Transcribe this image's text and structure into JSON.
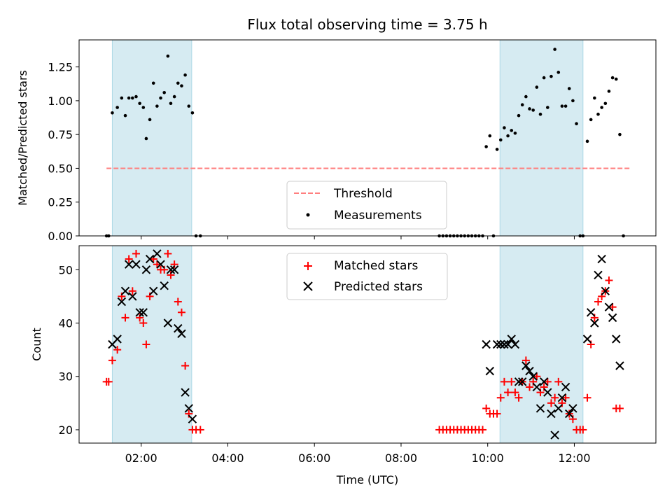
{
  "chart_data": [
    {
      "type": "scatter",
      "title": "Flux total observing time = 3.75 h",
      "xlabel": "",
      "ylabel": "Matched/Predicted stars",
      "xlim": [
        "00:34",
        "13:53"
      ],
      "ylim": [
        0,
        1.45
      ],
      "y_ticks": [
        0.0,
        0.25,
        0.5,
        0.75,
        1.0,
        1.25
      ],
      "y_tick_labels": [
        "0.00",
        "0.25",
        "0.50",
        "0.75",
        "1.00",
        "1.25"
      ],
      "x_ticks": [
        "02:00",
        "04:00",
        "06:00",
        "08:00",
        "10:00",
        "12:00"
      ],
      "x_tick_labels": [],
      "shaded_intervals": [
        [
          "01:20",
          "03:10"
        ],
        [
          "10:17",
          "12:12"
        ]
      ],
      "shade_color": "#add8e6",
      "legend_position": "lower-center",
      "threshold": {
        "name": "Threshold",
        "y": 0.5,
        "x_range": [
          "01:12",
          "13:18"
        ],
        "color": "#ff7f7f",
        "style": "dashed"
      },
      "series": [
        {
          "name": "Measurements",
          "color": "#000000",
          "points": [
            [
              "01:12",
              0.0
            ],
            [
              "01:15",
              0.0
            ],
            [
              "01:20",
              0.91
            ],
            [
              "01:27",
              0.95
            ],
            [
              "01:33",
              1.02
            ],
            [
              "01:38",
              0.89
            ],
            [
              "01:43",
              1.02
            ],
            [
              "01:48",
              1.02
            ],
            [
              "01:53",
              1.03
            ],
            [
              "01:58",
              0.98
            ],
            [
              "02:03",
              0.95
            ],
            [
              "02:07",
              0.72
            ],
            [
              "02:12",
              0.86
            ],
            [
              "02:17",
              1.13
            ],
            [
              "02:22",
              0.96
            ],
            [
              "02:27",
              1.02
            ],
            [
              "02:32",
              1.06
            ],
            [
              "02:37",
              1.33
            ],
            [
              "02:41",
              0.98
            ],
            [
              "02:46",
              1.03
            ],
            [
              "02:51",
              1.13
            ],
            [
              "02:56",
              1.11
            ],
            [
              "03:01",
              1.19
            ],
            [
              "03:06",
              0.96
            ],
            [
              "03:11",
              0.91
            ],
            [
              "03:16",
              0.0
            ],
            [
              "03:22",
              0.0
            ],
            [
              "08:53",
              0.0
            ],
            [
              "08:58",
              0.0
            ],
            [
              "09:03",
              0.0
            ],
            [
              "09:08",
              0.0
            ],
            [
              "09:13",
              0.0
            ],
            [
              "09:18",
              0.0
            ],
            [
              "09:23",
              0.0
            ],
            [
              "09:28",
              0.0
            ],
            [
              "09:33",
              0.0
            ],
            [
              "09:38",
              0.0
            ],
            [
              "09:43",
              0.0
            ],
            [
              "09:48",
              0.0
            ],
            [
              "09:53",
              0.0
            ],
            [
              "09:58",
              0.66
            ],
            [
              "10:03",
              0.74
            ],
            [
              "10:08",
              0.0
            ],
            [
              "10:13",
              0.64
            ],
            [
              "10:18",
              0.71
            ],
            [
              "10:23",
              0.8
            ],
            [
              "10:28",
              0.74
            ],
            [
              "10:33",
              0.78
            ],
            [
              "10:38",
              0.76
            ],
            [
              "10:43",
              0.89
            ],
            [
              "10:48",
              0.97
            ],
            [
              "10:53",
              1.03
            ],
            [
              "10:58",
              0.94
            ],
            [
              "11:03",
              0.93
            ],
            [
              "11:08",
              1.1
            ],
            [
              "11:13",
              0.9
            ],
            [
              "11:18",
              1.17
            ],
            [
              "11:23",
              0.95
            ],
            [
              "11:28",
              1.18
            ],
            [
              "11:33",
              1.38
            ],
            [
              "11:38",
              1.21
            ],
            [
              "11:43",
              0.96
            ],
            [
              "11:48",
              0.96
            ],
            [
              "11:53",
              1.09
            ],
            [
              "11:58",
              1.0
            ],
            [
              "12:03",
              0.83
            ],
            [
              "12:08",
              0.0
            ],
            [
              "12:12",
              0.0
            ],
            [
              "12:18",
              0.7
            ],
            [
              "12:23",
              0.86
            ],
            [
              "12:28",
              1.02
            ],
            [
              "12:33",
              0.9
            ],
            [
              "12:38",
              0.95
            ],
            [
              "12:43",
              0.98
            ],
            [
              "12:48",
              1.07
            ],
            [
              "12:53",
              1.17
            ],
            [
              "12:58",
              1.16
            ],
            [
              "13:03",
              0.75
            ],
            [
              "13:08",
              0.0
            ]
          ]
        }
      ]
    },
    {
      "type": "scatter",
      "title": "",
      "xlabel": "Time (UTC)",
      "ylabel": "Count",
      "xlim": [
        "00:34",
        "13:53"
      ],
      "ylim": [
        17.5,
        54.5
      ],
      "y_ticks": [
        20,
        30,
        40,
        50
      ],
      "y_tick_labels": [
        "20",
        "30",
        "40",
        "50"
      ],
      "x_ticks": [
        "02:00",
        "04:00",
        "06:00",
        "08:00",
        "10:00",
        "12:00"
      ],
      "x_tick_labels": [
        "02:00",
        "04:00",
        "06:00",
        "08:00",
        "10:00",
        "12:00"
      ],
      "shaded_intervals": [
        [
          "01:20",
          "03:10"
        ],
        [
          "10:17",
          "12:12"
        ]
      ],
      "shade_color": "#add8e6",
      "legend_position": "upper-center",
      "series": [
        {
          "name": "Matched stars",
          "color": "#ff0000",
          "marker": "plus",
          "points": [
            [
              "01:12",
              29
            ],
            [
              "01:15",
              29
            ],
            [
              "01:20",
              33
            ],
            [
              "01:27",
              35
            ],
            [
              "01:33",
              45
            ],
            [
              "01:38",
              41
            ],
            [
              "01:43",
              52
            ],
            [
              "01:48",
              46
            ],
            [
              "01:53",
              53
            ],
            [
              "01:58",
              41
            ],
            [
              "02:03",
              40
            ],
            [
              "02:07",
              36
            ],
            [
              "02:12",
              45
            ],
            [
              "02:17",
              52
            ],
            [
              "02:22",
              51
            ],
            [
              "02:27",
              50
            ],
            [
              "02:32",
              50
            ],
            [
              "02:37",
              53
            ],
            [
              "02:41",
              49
            ],
            [
              "02:46",
              51
            ],
            [
              "02:51",
              44
            ],
            [
              "02:56",
              42
            ],
            [
              "03:01",
              32
            ],
            [
              "03:06",
              23
            ],
            [
              "03:11",
              20
            ],
            [
              "03:16",
              20
            ],
            [
              "03:22",
              20
            ],
            [
              "08:53",
              20
            ],
            [
              "08:58",
              20
            ],
            [
              "09:03",
              20
            ],
            [
              "09:08",
              20
            ],
            [
              "09:13",
              20
            ],
            [
              "09:18",
              20
            ],
            [
              "09:23",
              20
            ],
            [
              "09:28",
              20
            ],
            [
              "09:33",
              20
            ],
            [
              "09:38",
              20
            ],
            [
              "09:43",
              20
            ],
            [
              "09:48",
              20
            ],
            [
              "09:53",
              20
            ],
            [
              "09:58",
              24
            ],
            [
              "10:03",
              23
            ],
            [
              "10:08",
              23
            ],
            [
              "10:13",
              23
            ],
            [
              "10:18",
              26
            ],
            [
              "10:23",
              29
            ],
            [
              "10:28",
              27
            ],
            [
              "10:33",
              29
            ],
            [
              "10:38",
              27
            ],
            [
              "10:43",
              26
            ],
            [
              "10:48",
              29
            ],
            [
              "10:53",
              33
            ],
            [
              "10:58",
              28
            ],
            [
              "11:03",
              29
            ],
            [
              "11:08",
              30
            ],
            [
              "11:13",
              27
            ],
            [
              "11:18",
              28
            ],
            [
              "11:23",
              29
            ],
            [
              "11:28",
              25
            ],
            [
              "11:33",
              26
            ],
            [
              "11:38",
              29
            ],
            [
              "11:43",
              25
            ],
            [
              "11:48",
              26
            ],
            [
              "11:53",
              23
            ],
            [
              "11:58",
              22
            ],
            [
              "12:03",
              20
            ],
            [
              "12:08",
              20
            ],
            [
              "12:12",
              20
            ],
            [
              "12:18",
              26
            ],
            [
              "12:23",
              36
            ],
            [
              "12:28",
              41
            ],
            [
              "12:33",
              44
            ],
            [
              "12:38",
              45
            ],
            [
              "12:43",
              46
            ],
            [
              "12:48",
              48
            ],
            [
              "12:53",
              43
            ],
            [
              "12:58",
              24
            ],
            [
              "13:03",
              24
            ]
          ]
        },
        {
          "name": "Predicted stars",
          "color": "#000000",
          "marker": "x",
          "points": [
            [
              "01:20",
              36
            ],
            [
              "01:27",
              37
            ],
            [
              "01:33",
              44
            ],
            [
              "01:38",
              46
            ],
            [
              "01:43",
              51
            ],
            [
              "01:48",
              45
            ],
            [
              "01:53",
              51
            ],
            [
              "01:58",
              42
            ],
            [
              "02:03",
              42
            ],
            [
              "02:07",
              50
            ],
            [
              "02:12",
              52
            ],
            [
              "02:17",
              46
            ],
            [
              "02:22",
              53
            ],
            [
              "02:27",
              51
            ],
            [
              "02:32",
              47
            ],
            [
              "02:37",
              40
            ],
            [
              "02:41",
              50
            ],
            [
              "02:46",
              50
            ],
            [
              "02:51",
              39
            ],
            [
              "02:56",
              38
            ],
            [
              "03:01",
              27
            ],
            [
              "03:06",
              24
            ],
            [
              "03:11",
              22
            ],
            [
              "09:58",
              36
            ],
            [
              "10:03",
              31
            ],
            [
              "10:13",
              36
            ],
            [
              "10:18",
              36
            ],
            [
              "10:23",
              36
            ],
            [
              "10:28",
              36
            ],
            [
              "10:33",
              37
            ],
            [
              "10:38",
              36
            ],
            [
              "10:43",
              29
            ],
            [
              "10:48",
              29
            ],
            [
              "10:53",
              32
            ],
            [
              "10:58",
              31
            ],
            [
              "11:03",
              30
            ],
            [
              "11:08",
              28
            ],
            [
              "11:13",
              24
            ],
            [
              "11:18",
              29
            ],
            [
              "11:23",
              27
            ],
            [
              "11:28",
              23
            ],
            [
              "11:33",
              19
            ],
            [
              "11:38",
              24
            ],
            [
              "11:43",
              26
            ],
            [
              "11:48",
              28
            ],
            [
              "11:53",
              23
            ],
            [
              "11:58",
              24
            ],
            [
              "12:18",
              37
            ],
            [
              "12:23",
              42
            ],
            [
              "12:28",
              40
            ],
            [
              "12:33",
              49
            ],
            [
              "12:38",
              52
            ],
            [
              "12:43",
              46
            ],
            [
              "12:48",
              43
            ],
            [
              "12:53",
              41
            ],
            [
              "12:58",
              37
            ],
            [
              "13:03",
              32
            ]
          ]
        }
      ]
    }
  ]
}
